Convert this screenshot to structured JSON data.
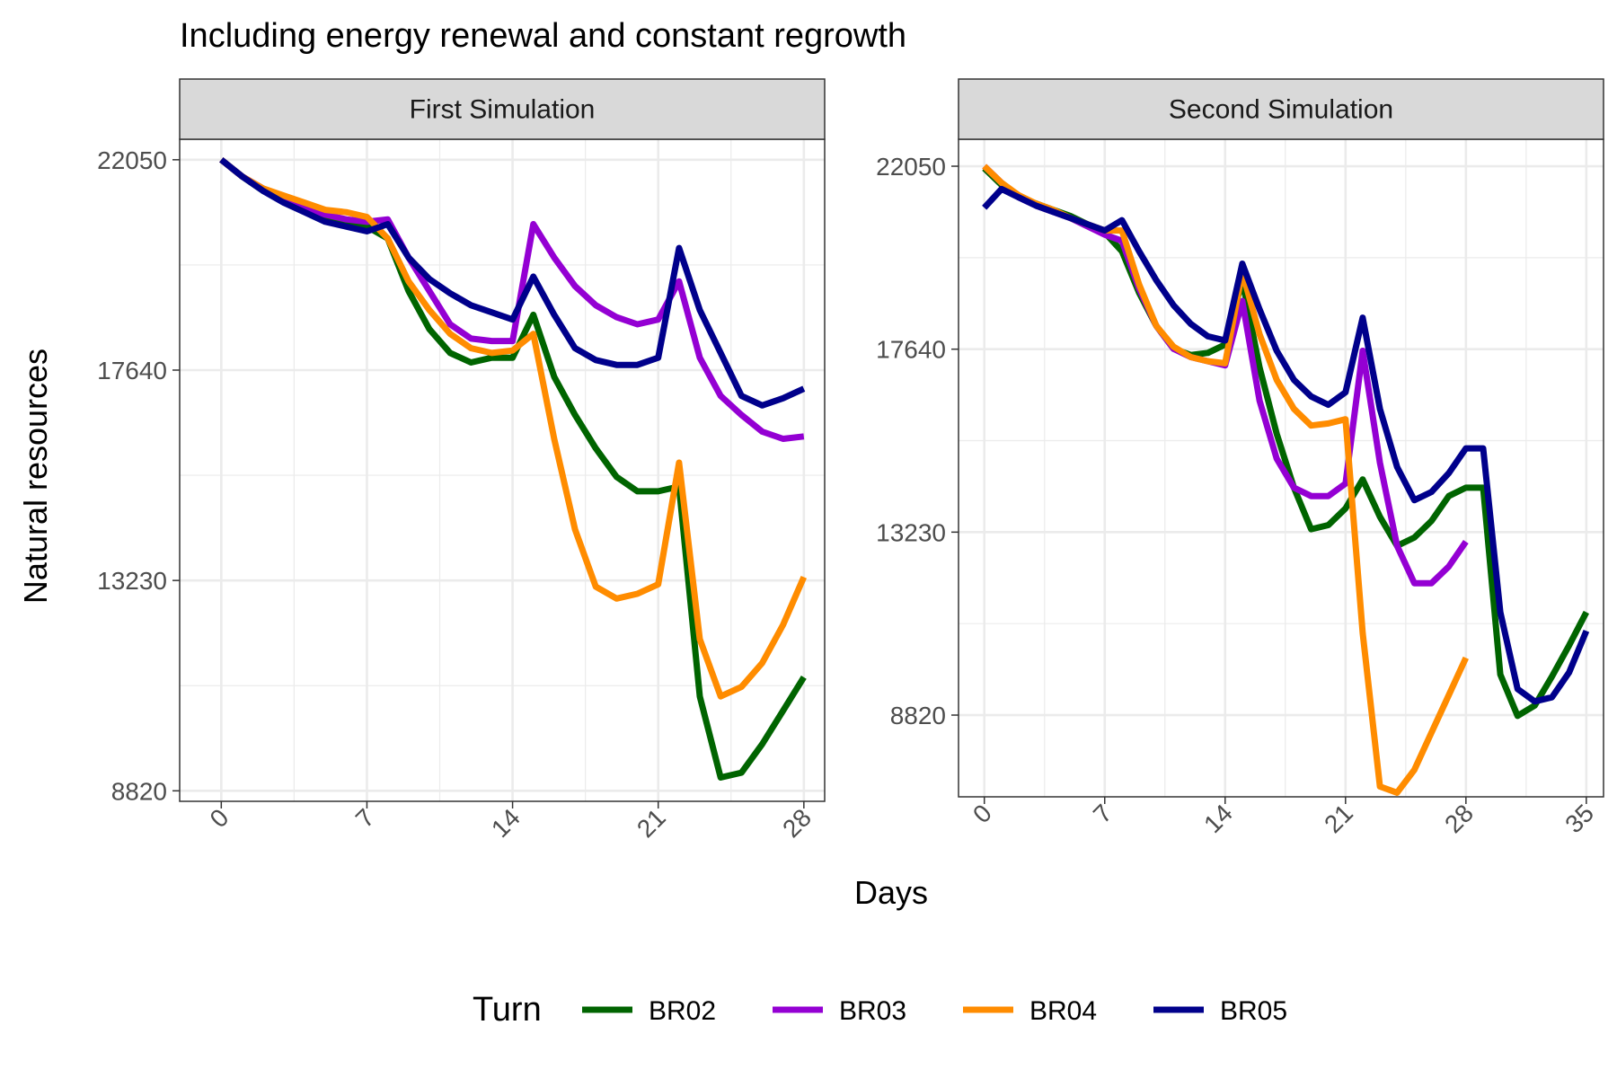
{
  "chart_data": {
    "type": "line",
    "title": "Including energy renewal and constant regrowth",
    "xlabel": "Days",
    "ylabel": "Natural resources",
    "legend": {
      "title": "Turn",
      "position": "bottom"
    },
    "grid": true,
    "yticks": [
      8820,
      13230,
      17640,
      22050
    ],
    "colors": {
      "BR02": "#006400",
      "BR03": "#9400D3",
      "BR04": "#FF8C00",
      "BR05": "#00008B"
    },
    "panels": [
      {
        "strip": "First Simulation",
        "xlim": [
          -2,
          29
        ],
        "ylim": [
          8600,
          22480
        ],
        "xticks": [
          0,
          7,
          14,
          21,
          28
        ],
        "series": [
          {
            "name": "BR02",
            "x": [
              0,
              1,
              2,
              3,
              4,
              5,
              6,
              7,
              8,
              9,
              10,
              11,
              12,
              13,
              14,
              15,
              16,
              17,
              18,
              19,
              20,
              21,
              22,
              23,
              24,
              25,
              26,
              27,
              28
            ],
            "values": [
              22050,
              21700,
              21400,
              21200,
              21000,
              20800,
              20700,
              20650,
              20400,
              19300,
              18500,
              18000,
              17800,
              17900,
              17900,
              18800,
              17500,
              16700,
              16000,
              15400,
              15100,
              15100,
              15200,
              10800,
              9100,
              9200,
              9800,
              10500,
              11200
            ]
          },
          {
            "name": "BR03",
            "x": [
              0,
              1,
              2,
              3,
              4,
              5,
              6,
              7,
              8,
              9,
              10,
              11,
              12,
              13,
              14,
              15,
              16,
              17,
              18,
              19,
              20,
              21,
              22,
              23,
              24,
              25,
              26,
              27,
              28
            ],
            "values": [
              22050,
              21700,
              21450,
              21250,
              21050,
              20900,
              20800,
              20750,
              20800,
              20000,
              19300,
              18600,
              18300,
              18250,
              18250,
              20700,
              20000,
              19400,
              19000,
              18750,
              18600,
              18700,
              19500,
              17900,
              17100,
              16700,
              16350,
              16200,
              16250
            ]
          },
          {
            "name": "BR04",
            "x": [
              0,
              1,
              2,
              3,
              4,
              5,
              6,
              7,
              8,
              9,
              10,
              11,
              12,
              13,
              14,
              15,
              16,
              17,
              18,
              19,
              20,
              21,
              22,
              23,
              24,
              25,
              26,
              27,
              28
            ],
            "values": [
              22050,
              21700,
              21450,
              21300,
              21150,
              21000,
              20950,
              20850,
              20400,
              19500,
              18900,
              18400,
              18100,
              18000,
              18050,
              18400,
              16200,
              14300,
              13100,
              12850,
              12950,
              13150,
              15700,
              12000,
              10800,
              11000,
              11500,
              12300,
              13300
            ]
          },
          {
            "name": "BR05",
            "x": [
              0,
              1,
              2,
              3,
              4,
              5,
              6,
              7,
              8,
              9,
              10,
              11,
              12,
              13,
              14,
              15,
              16,
              17,
              18,
              19,
              20,
              21,
              22,
              23,
              24,
              25,
              26,
              27,
              28
            ],
            "values": [
              22050,
              21700,
              21400,
              21150,
              20950,
              20750,
              20650,
              20550,
              20700,
              20000,
              19550,
              19250,
              19000,
              18850,
              18700,
              19600,
              18800,
              18100,
              17850,
              17750,
              17750,
              17900,
              20200,
              18900,
              18000,
              17100,
              16900,
              17050,
              17250
            ]
          }
        ]
      },
      {
        "strip": "Second Simulation",
        "xlim": [
          -1.5,
          36
        ],
        "ylim": [
          6850,
          22700
        ],
        "xticks": [
          0,
          7,
          14,
          21,
          28,
          35
        ],
        "series": [
          {
            "name": "BR02",
            "x": [
              0,
              1,
              2,
              3,
              4,
              5,
              6,
              7,
              8,
              9,
              10,
              11,
              12,
              13,
              14,
              15,
              16,
              17,
              18,
              19,
              20,
              21,
              22,
              23,
              24,
              25,
              26,
              27,
              28,
              29,
              30,
              31,
              32,
              33,
              34,
              35
            ],
            "values": [
              22000,
              21600,
              21300,
              21150,
              21000,
              20850,
              20650,
              20450,
              20000,
              19000,
              18200,
              17650,
              17500,
              17550,
              17750,
              19300,
              17200,
              15600,
              14300,
              13300,
              13400,
              13800,
              14500,
              13600,
              12900,
              13100,
              13500,
              14100,
              14300,
              14300,
              9800,
              8800,
              9050,
              9750,
              10500,
              11300
            ]
          },
          {
            "name": "BR03",
            "x": [
              0,
              1,
              2,
              3,
              4,
              5,
              6,
              7,
              8,
              9,
              10,
              11,
              12,
              13,
              14,
              15,
              16,
              17,
              18,
              19,
              20,
              21,
              22,
              23,
              24,
              25,
              26,
              27,
              28
            ],
            "values": [
              22050,
              21650,
              21300,
              21100,
              20950,
              20800,
              20600,
              20400,
              20250,
              19100,
              18200,
              17650,
              17450,
              17350,
              17250,
              18800,
              16400,
              15000,
              14300,
              14100,
              14100,
              14400,
              17600,
              14900,
              12900,
              12000,
              12000,
              12400,
              13000
            ]
          },
          {
            "name": "BR04",
            "x": [
              0,
              1,
              2,
              3,
              4,
              5,
              6,
              7,
              8,
              9,
              10,
              11,
              12,
              13,
              14,
              15,
              16,
              17,
              18,
              19,
              20,
              21,
              22,
              23,
              24,
              25,
              26,
              27,
              28
            ],
            "values": [
              22050,
              21650,
              21350,
              21150,
              21000,
              20800,
              20650,
              20500,
              20500,
              19200,
              18200,
              17700,
              17450,
              17350,
              17300,
              19500,
              18000,
              16900,
              16200,
              15800,
              15850,
              15950,
              10800,
              7100,
              6950,
              7500,
              8400,
              9300,
              10200
            ]
          },
          {
            "name": "BR05",
            "x": [
              0,
              1,
              2,
              3,
              4,
              5,
              6,
              7,
              8,
              9,
              10,
              11,
              12,
              13,
              14,
              15,
              16,
              17,
              18,
              19,
              20,
              21,
              22,
              23,
              24,
              25,
              26,
              27,
              28,
              29,
              30,
              31,
              32,
              33,
              34,
              35
            ],
            "values": [
              21050,
              21500,
              21300,
              21100,
              20950,
              20800,
              20650,
              20500,
              20750,
              20000,
              19300,
              18700,
              18250,
              17950,
              17850,
              19700,
              18600,
              17600,
              16900,
              16500,
              16300,
              16600,
              18400,
              16200,
              14800,
              14000,
              14200,
              14650,
              15250,
              15250,
              11300,
              9450,
              9150,
              9250,
              9850,
              10850
            ]
          }
        ]
      }
    ]
  }
}
